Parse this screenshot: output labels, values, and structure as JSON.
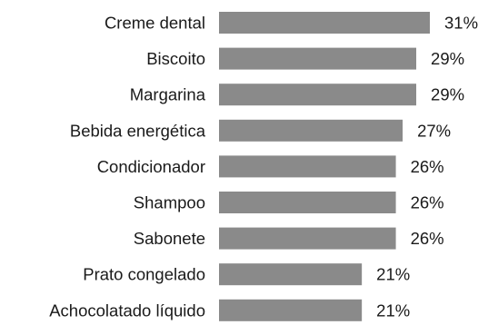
{
  "chart_data": {
    "type": "bar",
    "orientation": "horizontal",
    "categories": [
      "Creme dental",
      "Biscoito",
      "Margarina",
      "Bebida energética",
      "Condicionador",
      "Shampoo",
      "Sabonete",
      "Prato congelado",
      "Achocolatado líquido"
    ],
    "values": [
      31,
      29,
      29,
      27,
      26,
      26,
      26,
      21,
      21
    ],
    "value_labels": [
      "31%",
      "29%",
      "29%",
      "27%",
      "26%",
      "26%",
      "26%",
      "21%",
      "21%"
    ],
    "unit": "%",
    "title": "",
    "xlabel": "",
    "ylabel": "",
    "grid": false,
    "legend": "none",
    "bar_color": "#8a8a8a"
  }
}
